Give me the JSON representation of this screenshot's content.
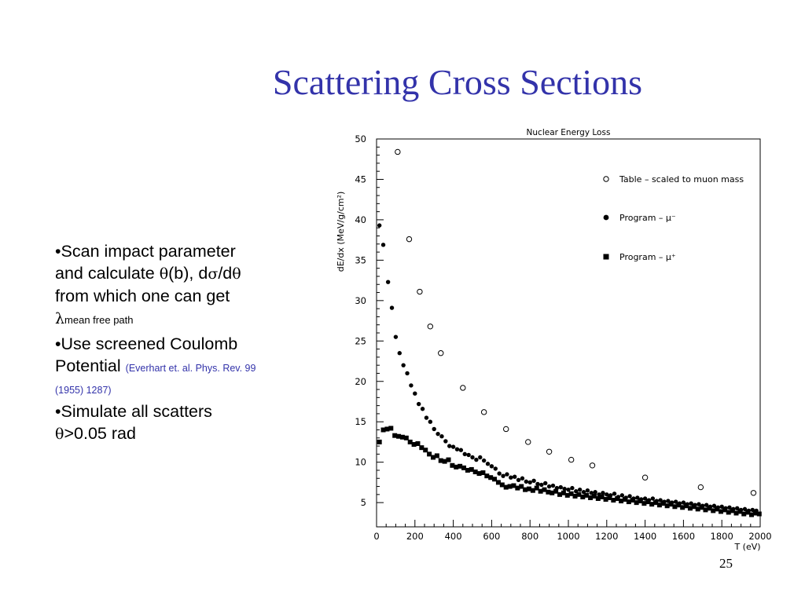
{
  "slide": {
    "title": "Scattering Cross Sections",
    "page_number": "25",
    "bullets": [
      {
        "marker": "•",
        "line1": "Scan impact parameter",
        "line2_a": "and calculate ",
        "theta": "θ",
        "line2_b": "(b), d",
        "sigma": "σ",
        "slash": "/d",
        "theta2": "θ",
        "line3": "from which one can get",
        "lambda": "λ",
        "lambda_sub": "mean free path"
      },
      {
        "marker": "•",
        "line1": "Use screened Coulomb",
        "line2": "Potential ",
        "citation_a": "(Everhart et. al. Phys. Rev. 99",
        "citation_b": "(1955) 1287)"
      },
      {
        "marker": "•",
        "line1": "Simulate all scatters",
        "theta": "θ",
        "line2": ">0.05 rad"
      }
    ]
  },
  "chart_data": {
    "type": "scatter",
    "title": "Nuclear Energy Loss",
    "xlabel": "T (eV)",
    "ylabel": "dE/dx (MeV/g/cm²)",
    "xlim": [
      0,
      2000
    ],
    "ylim": [
      2,
      50
    ],
    "x_ticks": [
      "0",
      "200",
      "400",
      "600",
      "800",
      "1000",
      "1200",
      "1400",
      "1600",
      "1800",
      "2000"
    ],
    "y_ticks": [
      "5",
      "10",
      "15",
      "20",
      "25",
      "30",
      "35",
      "40",
      "45",
      "50"
    ],
    "legend_position": "top-right",
    "series": [
      {
        "name": "Table – scaled to muon mass",
        "marker": "open-circle",
        "points": [
          [
            110,
            48.4
          ],
          [
            170,
            37.6
          ],
          [
            225,
            31.1
          ],
          [
            280,
            26.8
          ],
          [
            335,
            23.5
          ],
          [
            450,
            19.2
          ],
          [
            560,
            16.2
          ],
          [
            675,
            14.1
          ],
          [
            790,
            12.5
          ],
          [
            900,
            11.3
          ],
          [
            1015,
            10.3
          ],
          [
            1125,
            9.6
          ],
          [
            1400,
            8.1
          ],
          [
            1690,
            6.9
          ],
          [
            1965,
            6.2
          ]
        ]
      },
      {
        "name": "Program – μ⁻",
        "marker": "filled-circle",
        "points": [
          [
            15,
            39.3
          ],
          [
            35,
            36.9
          ],
          [
            60,
            32.3
          ],
          [
            80,
            29.1
          ],
          [
            100,
            25.5
          ],
          [
            120,
            23.5
          ],
          [
            140,
            22.0
          ],
          [
            160,
            21.0
          ],
          [
            180,
            19.5
          ],
          [
            200,
            18.5
          ],
          [
            220,
            17.2
          ],
          [
            240,
            16.6
          ],
          [
            260,
            15.5
          ],
          [
            280,
            15.0
          ],
          [
            300,
            14.1
          ],
          [
            320,
            13.5
          ],
          [
            340,
            13.2
          ],
          [
            360,
            12.6
          ],
          [
            380,
            12.0
          ],
          [
            400,
            11.9
          ],
          [
            420,
            11.6
          ],
          [
            440,
            11.5
          ],
          [
            460,
            11.0
          ],
          [
            480,
            10.9
          ],
          [
            500,
            10.6
          ],
          [
            520,
            10.3
          ],
          [
            540,
            10.6
          ],
          [
            560,
            10.2
          ],
          [
            580,
            9.8
          ],
          [
            600,
            9.5
          ],
          [
            620,
            9.2
          ],
          [
            640,
            8.6
          ],
          [
            660,
            8.3
          ],
          [
            680,
            8.5
          ],
          [
            700,
            8.1
          ],
          [
            720,
            8.2
          ],
          [
            740,
            7.8
          ],
          [
            760,
            8.0
          ],
          [
            780,
            7.6
          ],
          [
            800,
            7.5
          ],
          [
            820,
            7.7
          ],
          [
            840,
            7.3
          ],
          [
            860,
            7.2
          ],
          [
            880,
            7.4
          ],
          [
            900,
            7.0
          ],
          [
            920,
            7.1
          ],
          [
            940,
            6.8
          ],
          [
            960,
            6.9
          ],
          [
            980,
            6.7
          ],
          [
            1000,
            6.6
          ],
          [
            1020,
            6.8
          ],
          [
            1040,
            6.4
          ],
          [
            1060,
            6.6
          ],
          [
            1080,
            6.3
          ],
          [
            1100,
            6.5
          ],
          [
            1120,
            6.2
          ],
          [
            1140,
            6.3
          ],
          [
            1160,
            6.0
          ],
          [
            1180,
            6.2
          ],
          [
            1200,
            6.0
          ],
          [
            1220,
            5.9
          ],
          [
            1240,
            6.1
          ],
          [
            1260,
            5.7
          ],
          [
            1280,
            5.9
          ],
          [
            1300,
            5.6
          ],
          [
            1320,
            5.8
          ],
          [
            1340,
            5.5
          ],
          [
            1360,
            5.6
          ],
          [
            1380,
            5.4
          ],
          [
            1400,
            5.5
          ],
          [
            1420,
            5.3
          ],
          [
            1440,
            5.5
          ],
          [
            1460,
            5.2
          ],
          [
            1480,
            5.3
          ],
          [
            1500,
            5.1
          ],
          [
            1520,
            5.2
          ],
          [
            1540,
            5.0
          ],
          [
            1560,
            5.1
          ],
          [
            1580,
            4.9
          ],
          [
            1600,
            5.0
          ],
          [
            1620,
            4.8
          ],
          [
            1640,
            4.9
          ],
          [
            1660,
            4.7
          ],
          [
            1680,
            4.8
          ],
          [
            1700,
            4.6
          ],
          [
            1720,
            4.7
          ],
          [
            1740,
            4.5
          ],
          [
            1760,
            4.6
          ],
          [
            1780,
            4.4
          ],
          [
            1800,
            4.5
          ],
          [
            1820,
            4.3
          ],
          [
            1840,
            4.4
          ],
          [
            1860,
            4.2
          ],
          [
            1880,
            4.3
          ],
          [
            1900,
            4.1
          ],
          [
            1920,
            4.2
          ],
          [
            1940,
            4.0
          ],
          [
            1960,
            4.1
          ],
          [
            1980,
            4.0
          ]
        ]
      },
      {
        "name": "Program – μ⁺",
        "marker": "filled-square",
        "points": [
          [
            15,
            12.5
          ],
          [
            35,
            14.0
          ],
          [
            55,
            14.1
          ],
          [
            75,
            14.2
          ],
          [
            95,
            13.3
          ],
          [
            115,
            13.2
          ],
          [
            135,
            13.1
          ],
          [
            155,
            13.0
          ],
          [
            175,
            12.5
          ],
          [
            195,
            12.2
          ],
          [
            215,
            12.3
          ],
          [
            235,
            11.8
          ],
          [
            255,
            11.5
          ],
          [
            275,
            11.0
          ],
          [
            295,
            10.6
          ],
          [
            315,
            10.8
          ],
          [
            335,
            10.2
          ],
          [
            355,
            10.1
          ],
          [
            375,
            10.3
          ],
          [
            395,
            9.6
          ],
          [
            415,
            9.4
          ],
          [
            435,
            9.5
          ],
          [
            455,
            9.3
          ],
          [
            475,
            9.0
          ],
          [
            495,
            9.1
          ],
          [
            515,
            8.8
          ],
          [
            535,
            8.6
          ],
          [
            555,
            8.7
          ],
          [
            575,
            8.3
          ],
          [
            595,
            8.1
          ],
          [
            615,
            7.9
          ],
          [
            635,
            7.5
          ],
          [
            655,
            7.2
          ],
          [
            675,
            6.9
          ],
          [
            695,
            7.0
          ],
          [
            715,
            7.1
          ],
          [
            735,
            6.8
          ],
          [
            755,
            7.0
          ],
          [
            775,
            6.6
          ],
          [
            795,
            6.7
          ],
          [
            815,
            6.5
          ],
          [
            835,
            6.8
          ],
          [
            855,
            6.4
          ],
          [
            875,
            6.6
          ],
          [
            895,
            6.3
          ],
          [
            915,
            6.2
          ],
          [
            935,
            6.4
          ],
          [
            955,
            6.0
          ],
          [
            975,
            6.2
          ],
          [
            995,
            5.9
          ],
          [
            1015,
            6.1
          ],
          [
            1035,
            5.8
          ],
          [
            1055,
            6.0
          ],
          [
            1075,
            5.7
          ],
          [
            1095,
            5.9
          ],
          [
            1115,
            5.6
          ],
          [
            1135,
            5.8
          ],
          [
            1155,
            5.5
          ],
          [
            1175,
            5.7
          ],
          [
            1195,
            5.4
          ],
          [
            1215,
            5.6
          ],
          [
            1235,
            5.3
          ],
          [
            1255,
            5.5
          ],
          [
            1275,
            5.2
          ],
          [
            1295,
            5.4
          ],
          [
            1315,
            5.1
          ],
          [
            1335,
            5.3
          ],
          [
            1355,
            5.0
          ],
          [
            1375,
            5.2
          ],
          [
            1395,
            4.9
          ],
          [
            1415,
            5.1
          ],
          [
            1435,
            4.8
          ],
          [
            1455,
            5.0
          ],
          [
            1475,
            4.7
          ],
          [
            1495,
            4.9
          ],
          [
            1515,
            4.6
          ],
          [
            1535,
            4.8
          ],
          [
            1555,
            4.5
          ],
          [
            1575,
            4.7
          ],
          [
            1595,
            4.4
          ],
          [
            1615,
            4.6
          ],
          [
            1635,
            4.3
          ],
          [
            1655,
            4.5
          ],
          [
            1675,
            4.2
          ],
          [
            1695,
            4.4
          ],
          [
            1715,
            4.1
          ],
          [
            1735,
            4.3
          ],
          [
            1755,
            4.0
          ],
          [
            1775,
            4.2
          ],
          [
            1795,
            3.9
          ],
          [
            1815,
            4.1
          ],
          [
            1835,
            3.8
          ],
          [
            1855,
            4.0
          ],
          [
            1875,
            3.7
          ],
          [
            1895,
            3.9
          ],
          [
            1915,
            3.6
          ],
          [
            1935,
            3.8
          ],
          [
            1955,
            3.5
          ],
          [
            1975,
            3.7
          ],
          [
            1995,
            3.6
          ]
        ]
      }
    ]
  }
}
